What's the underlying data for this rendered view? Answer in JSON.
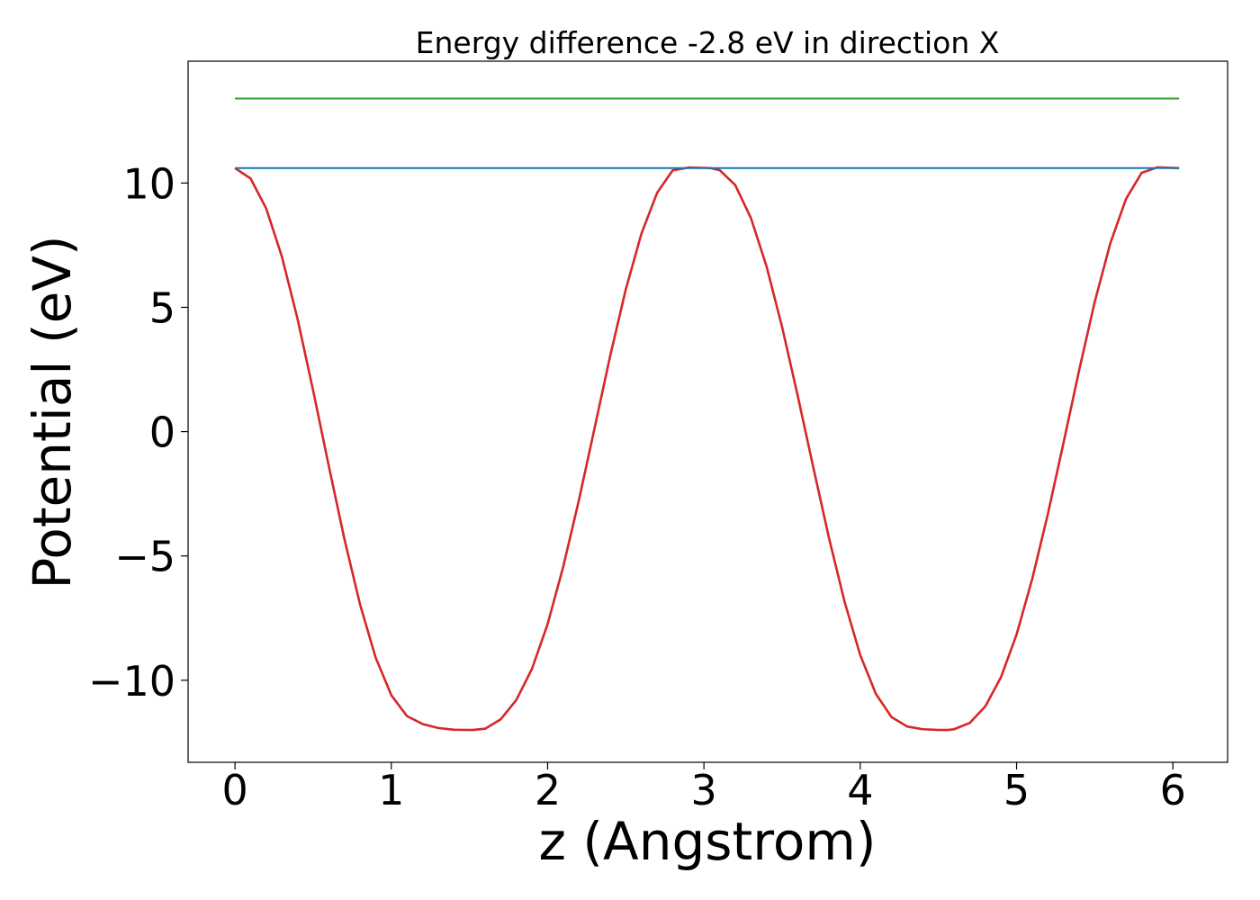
{
  "chart_data": {
    "type": "line",
    "title": "Energy difference -2.8 eV in direction X",
    "xlabel": "z (Angstrom)",
    "ylabel": "Potential (eV)",
    "xlim": [
      -0.3,
      6.35
    ],
    "ylim": [
      -13.3,
      14.9
    ],
    "xticks": [
      0,
      1,
      2,
      3,
      4,
      5,
      6
    ],
    "xtick_labels": [
      "0",
      "1",
      "2",
      "3",
      "4",
      "5",
      "6"
    ],
    "yticks": [
      -10,
      -5,
      0,
      5,
      10
    ],
    "ytick_labels": [
      "−10",
      "−5",
      "0",
      "5",
      "10"
    ],
    "grid": false,
    "series": [
      {
        "color": "#d62728",
        "kind": "curve",
        "x": [
          0,
          0.1,
          0.2,
          0.3,
          0.4,
          0.5,
          0.6,
          0.7,
          0.8,
          0.9,
          1.0,
          1.1,
          1.2,
          1.3,
          1.4,
          1.5,
          1.52,
          1.6,
          1.7,
          1.8,
          1.9,
          2.0,
          2.1,
          2.2,
          2.3,
          2.4,
          2.5,
          2.6,
          2.7,
          2.8,
          2.9,
          3.0,
          3.04,
          3.1,
          3.2,
          3.3,
          3.4,
          3.5,
          3.6,
          3.7,
          3.8,
          3.9,
          4.0,
          4.1,
          4.2,
          4.3,
          4.4,
          4.5,
          4.56,
          4.6,
          4.7,
          4.8,
          4.9,
          5.0,
          5.1,
          5.2,
          5.3,
          5.4,
          5.5,
          5.6,
          5.7,
          5.8,
          5.9,
          6.0,
          6.04
        ],
        "y": [
          10.6,
          10.18,
          8.97,
          7.04,
          4.54,
          1.65,
          -1.38,
          -4.32,
          -6.95,
          -9.09,
          -10.6,
          -11.44,
          -11.76,
          -11.92,
          -11.99,
          -12.0,
          -12.0,
          -11.95,
          -11.57,
          -10.79,
          -9.54,
          -7.74,
          -5.43,
          -2.76,
          0.13,
          3.04,
          5.72,
          7.96,
          9.6,
          10.51,
          10.62,
          10.61,
          10.6,
          10.52,
          9.92,
          8.6,
          6.66,
          4.21,
          1.44,
          -1.45,
          -4.28,
          -6.85,
          -8.99,
          -10.55,
          -11.48,
          -11.86,
          -11.97,
          -12.0,
          -12.0,
          -11.97,
          -11.72,
          -11.05,
          -9.88,
          -8.16,
          -5.93,
          -3.32,
          -0.46,
          2.46,
          5.22,
          7.58,
          9.36,
          10.41,
          10.63,
          10.61,
          10.6
        ]
      },
      {
        "color": "#1f77b4",
        "kind": "horizontal",
        "x": [
          0,
          6.04
        ],
        "y": [
          10.6,
          10.6
        ]
      },
      {
        "color": "#2ca02c",
        "kind": "horizontal",
        "x": [
          0,
          6.04
        ],
        "y": [
          13.4,
          13.4
        ]
      }
    ]
  }
}
